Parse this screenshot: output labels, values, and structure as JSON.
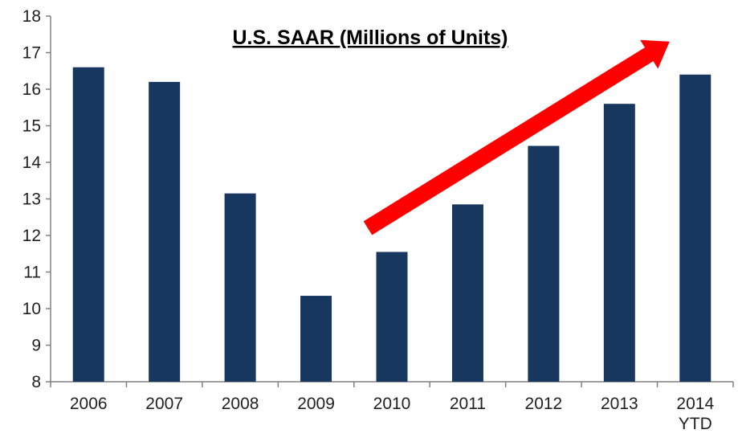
{
  "chart_data": {
    "type": "bar",
    "title": "U.S. SAAR (Millions of Units)",
    "categories": [
      "2006",
      "2007",
      "2008",
      "2009",
      "2010",
      "2011",
      "2012",
      "2013",
      "2014\nYTD"
    ],
    "values": [
      16.6,
      16.2,
      13.15,
      10.35,
      11.55,
      12.85,
      14.45,
      15.6,
      16.4
    ],
    "xlabel": "",
    "ylabel": "",
    "ylim": [
      8,
      18
    ],
    "yticks": [
      8,
      9,
      10,
      11,
      12,
      13,
      14,
      15,
      16,
      17,
      18
    ],
    "grid": false,
    "legend": "none",
    "bar_color": "#17375e",
    "axis_color": "#808080",
    "annotations": [
      {
        "type": "arrow",
        "color": "#ff0000",
        "from": {
          "x": "2010",
          "y": 12.2
        },
        "to": {
          "x": "2014\nYTD",
          "y": 17.3
        }
      }
    ]
  }
}
